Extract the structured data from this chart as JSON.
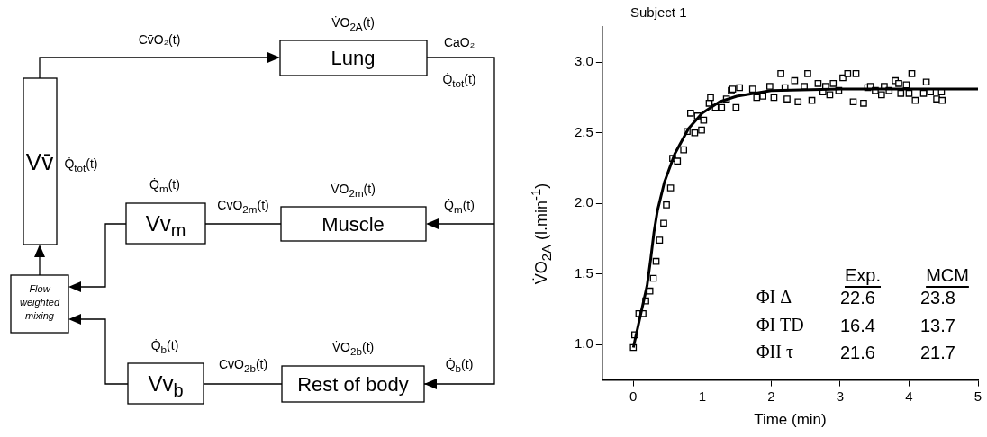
{
  "chart_data": [
    {
      "type": "other",
      "annotations": [
        "Lung",
        "Muscle",
        "Rest of body",
        "Vv$_{m}$",
        "Vv$_{b}$",
        "Vv̄",
        "Flow weighted mixing",
        "Cv̄O₂(t)",
        "V̇O$_{2A}$(t)",
        "CaO₂",
        "Q̇$_{tot}$(t)",
        "Q̇$_{tot}$(t)",
        "Q̇$_{m}$(t)",
        "CvO$_{2m}$(t)",
        "V̇O$_{2m}$(t)",
        "Q̇$_{m}$(t)",
        "Q̇$_{b}$(t)",
        "CvO$_{2b}$(t)",
        "V̇O$_{2b}$(t)",
        "Q̇$_{b}$(t)"
      ]
    },
    {
      "type": "scatter",
      "xlabel": "Time (min)",
      "ylabel": "V̇O$_{2A}$ (l.min$^{-1}$)",
      "annotations": [
        "Subject 1",
        "Exp.",
        "MCM",
        "ΦI Δ",
        "22.6",
        "23.8",
        "ΦI TD",
        "16.4",
        "13.7",
        "ΦII τ",
        "21.6",
        "21.7"
      ],
      "xlim": [
        -0.45,
        5
      ],
      "xticks": [
        0,
        1,
        2,
        3,
        4,
        5
      ],
      "ylim": [
        0.75,
        3.25
      ],
      "yticks": [
        {
          "value": 1,
          "label": "1.0"
        },
        {
          "value": 1.5,
          "label": "1.5"
        },
        {
          "value": 2,
          "label": "2.0"
        },
        {
          "value": 2.5,
          "label": "2.5"
        },
        {
          "value": 3,
          "label": "3.0"
        }
      ],
      "legend": false,
      "grid": false,
      "series": [
        {
          "type": "scatter",
          "color": "#000000",
          "marker": "square",
          "x": [
            0,
            0.02,
            0.08,
            0.14,
            0.18,
            0.24,
            0.29,
            0.33,
            0.38,
            0.44,
            0.48,
            0.54,
            0.57,
            0.64,
            0.73,
            0.78,
            0.89,
            0.83,
            0.93,
            0.99,
            1.02,
            1.1,
            1.12,
            1.19,
            1.28,
            1.35,
            1.42,
            1.44,
            1.49,
            1.54,
            1.73,
            1.79,
            1.88,
            1.98,
            2.04,
            2.14,
            2.2,
            2.23,
            2.34,
            2.39,
            2.48,
            2.53,
            2.59,
            2.68,
            2.75,
            2.79,
            2.85,
            2.9,
            2.98,
            3.04,
            3.11,
            3.19,
            3.23,
            3.34,
            3.4,
            3.44,
            3.51,
            3.6,
            3.64,
            3.71,
            3.8,
            3.85,
            3.88,
            3.96,
            4.0,
            4.04,
            4.09,
            4.21,
            4.25,
            4.31,
            4.4,
            4.47,
            4.48
          ],
          "values": [
            0.98,
            1.07,
            1.22,
            1.22,
            1.31,
            1.38,
            1.47,
            1.59,
            1.74,
            1.86,
            1.99,
            2.11,
            2.32,
            2.3,
            2.38,
            2.51,
            2.5,
            2.64,
            2.62,
            2.52,
            2.59,
            2.71,
            2.75,
            2.68,
            2.68,
            2.74,
            2.8,
            2.81,
            2.68,
            2.82,
            2.81,
            2.75,
            2.76,
            2.83,
            2.75,
            2.92,
            2.82,
            2.74,
            2.87,
            2.72,
            2.83,
            2.92,
            2.73,
            2.85,
            2.79,
            2.83,
            2.77,
            2.85,
            2.8,
            2.89,
            2.92,
            2.72,
            2.92,
            2.71,
            2.82,
            2.83,
            2.8,
            2.77,
            2.83,
            2.8,
            2.87,
            2.85,
            2.78,
            2.84,
            2.78,
            2.92,
            2.73,
            2.78,
            2.86,
            2.79,
            2.74,
            2.79,
            2.73
          ]
        },
        {
          "type": "line",
          "color": "#000000",
          "marker": "none",
          "x": [
            0,
            0.1,
            0.2,
            0.25,
            0.3,
            0.35,
            0.45,
            0.6,
            0.8,
            1.0,
            1.25,
            1.5,
            2,
            3,
            5
          ],
          "values": [
            0.98,
            1.2,
            1.42,
            1.6,
            1.8,
            1.95,
            2.15,
            2.35,
            2.53,
            2.64,
            2.72,
            2.76,
            2.8,
            2.81,
            2.81
          ]
        }
      ]
    }
  ]
}
